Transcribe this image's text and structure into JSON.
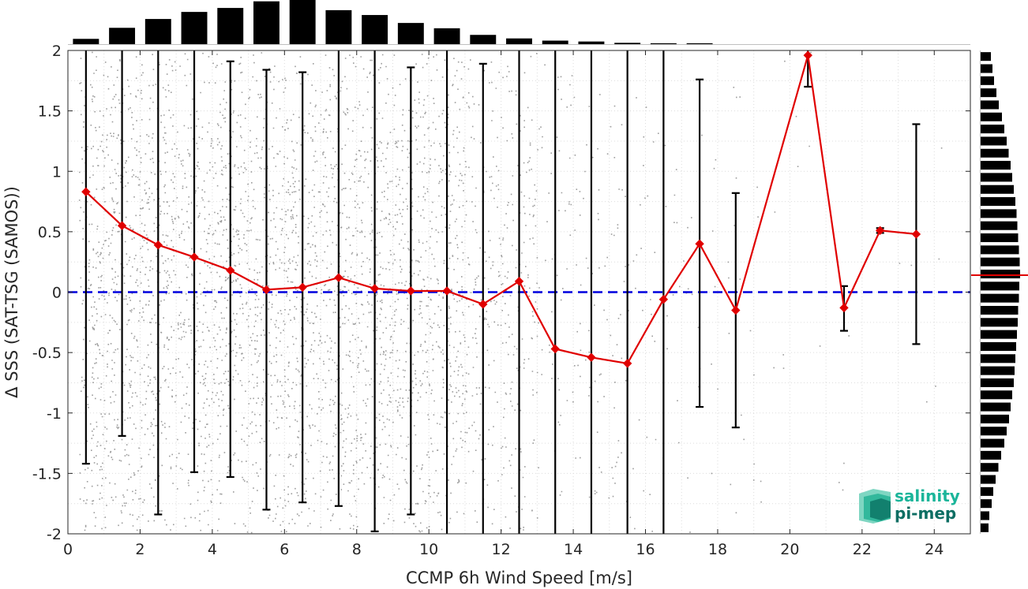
{
  "chart_data": {
    "type": "scatter",
    "xlabel": "CCMP 6h Wind Speed [m/s]",
    "ylabel": "Δ SSS (SAT-TSG (SAMOS))",
    "xlim": [
      0,
      25
    ],
    "ylim": [
      -2,
      2
    ],
    "x_ticks": [
      "0",
      "2",
      "4",
      "6",
      "8",
      "10",
      "12",
      "14",
      "16",
      "18",
      "20",
      "22",
      "24"
    ],
    "y_ticks": [
      "2",
      "1.5",
      "1",
      "0.5",
      "0",
      "-0.5",
      "-1",
      "-1.5",
      "-2"
    ],
    "grid": true,
    "reference_line": {
      "y": 0,
      "style": "dashed",
      "color": "#0000dd"
    },
    "series": [
      {
        "style": "line-marker",
        "color": "#e00000",
        "x": [
          0.5,
          1.5,
          2.5,
          3.5,
          4.5,
          5.5,
          6.5,
          7.5,
          8.5,
          9.5,
          10.5,
          11.5,
          12.5,
          13.5,
          14.5,
          15.5,
          16.5,
          17.5,
          18.5,
          20.5,
          21.5,
          22.5,
          23.5
        ],
        "y": [
          0.83,
          0.55,
          0.39,
          0.29,
          0.18,
          0.02,
          0.04,
          0.12,
          0.03,
          0.01,
          0.01,
          -0.1,
          0.09,
          -0.47,
          -0.54,
          -0.59,
          -0.06,
          0.4,
          -0.15,
          1.96,
          -0.13,
          0.51,
          0.48
        ]
      }
    ],
    "error_bars": {
      "x": [
        0.5,
        1.5,
        2.5,
        3.5,
        4.5,
        5.5,
        6.5,
        7.5,
        8.5,
        9.5,
        10.5,
        11.5,
        12.5,
        13.5,
        14.5,
        15.5,
        16.5,
        17.5,
        18.5,
        20.5,
        21.5,
        22.5,
        23.5
      ],
      "low": [
        -1.42,
        -1.19,
        -1.84,
        -1.49,
        -1.53,
        -1.8,
        -1.74,
        -1.77,
        -1.98,
        -1.84,
        -2.0,
        -2.0,
        -2.0,
        -2.0,
        -2.0,
        -2.0,
        -2.0,
        -0.95,
        -1.12,
        1.7,
        -0.32,
        0.49,
        -0.43
      ],
      "high": [
        2.0,
        2.0,
        2.0,
        2.0,
        1.91,
        1.84,
        1.82,
        2.0,
        2.0,
        1.86,
        2.0,
        1.89,
        2.0,
        2.0,
        2.0,
        2.0,
        2.0,
        1.76,
        0.82,
        2.0,
        0.05,
        0.53,
        1.39
      ],
      "color": "#000000"
    },
    "scatter_cloud": {
      "color": "#8c8c8c"
    },
    "top_histogram": {
      "bin_centers": [
        0.5,
        1.5,
        2.5,
        3.5,
        4.5,
        5.5,
        6.5,
        7.5,
        8.5,
        9.5,
        10.5,
        11.5,
        12.5,
        13.5,
        14.5,
        15.5,
        16.5,
        17.5
      ],
      "relative_counts": [
        0.12,
        0.37,
        0.57,
        0.73,
        0.82,
        0.97,
        1.0,
        0.77,
        0.66,
        0.48,
        0.36,
        0.21,
        0.13,
        0.08,
        0.06,
        0.03,
        0.02,
        0.02
      ],
      "color": "#000000"
    },
    "right_histogram": {
      "bin_centers": [
        -1.95,
        -1.85,
        -1.75,
        -1.65,
        -1.55,
        -1.45,
        -1.35,
        -1.25,
        -1.15,
        -1.05,
        -0.95,
        -0.85,
        -0.75,
        -0.65,
        -0.55,
        -0.45,
        -0.35,
        -0.25,
        -0.15,
        -0.05,
        0.05,
        0.15,
        0.25,
        0.35,
        0.45,
        0.55,
        0.65,
        0.75,
        0.85,
        0.95,
        1.05,
        1.15,
        1.25,
        1.35,
        1.45,
        1.55,
        1.65,
        1.75,
        1.85,
        1.95
      ],
      "relative_counts": [
        0.2,
        0.22,
        0.28,
        0.32,
        0.38,
        0.45,
        0.52,
        0.6,
        0.66,
        0.72,
        0.76,
        0.8,
        0.84,
        0.86,
        0.88,
        0.9,
        0.92,
        0.94,
        0.95,
        0.97,
        0.98,
        1.0,
        0.99,
        0.97,
        0.95,
        0.93,
        0.91,
        0.88,
        0.84,
        0.8,
        0.76,
        0.71,
        0.66,
        0.6,
        0.54,
        0.46,
        0.4,
        0.34,
        0.3,
        0.26
      ],
      "mean_marker": 0.14,
      "color": "#000000",
      "mean_color": "#e00000"
    }
  },
  "logo": {
    "line1": "salinity",
    "line2": "pi-mep",
    "color1": "#1bb59a",
    "color2": "#0d6e63"
  }
}
